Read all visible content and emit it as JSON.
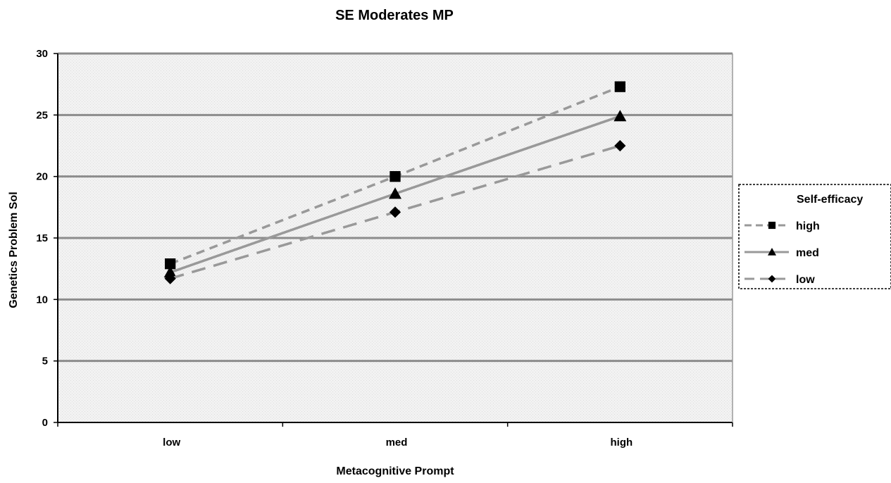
{
  "chart_data": {
    "type": "line",
    "title": "SE Moderates MP",
    "xlabel": "Metacognitive Prompt",
    "ylabel": "Genetics Problem Sol",
    "categories": [
      "low",
      "med",
      "high"
    ],
    "ylim": [
      0,
      30
    ],
    "yticks": [
      "0",
      "5",
      "10",
      "15",
      "20",
      "25",
      "30"
    ],
    "grid": true,
    "legend": {
      "title": "Self-efficacy",
      "placement": "right"
    },
    "series": [
      {
        "name": "high",
        "values": [
          12.9,
          20.0,
          27.3
        ],
        "marker": "square",
        "line": "dashed",
        "color": "#999999"
      },
      {
        "name": "med",
        "values": [
          12.2,
          18.6,
          24.9
        ],
        "marker": "triangle",
        "line": "solid",
        "color": "#999999"
      },
      {
        "name": "low",
        "values": [
          11.7,
          17.1,
          22.5
        ],
        "marker": "diamond",
        "line": "long-dashed",
        "color": "#999999"
      }
    ]
  }
}
